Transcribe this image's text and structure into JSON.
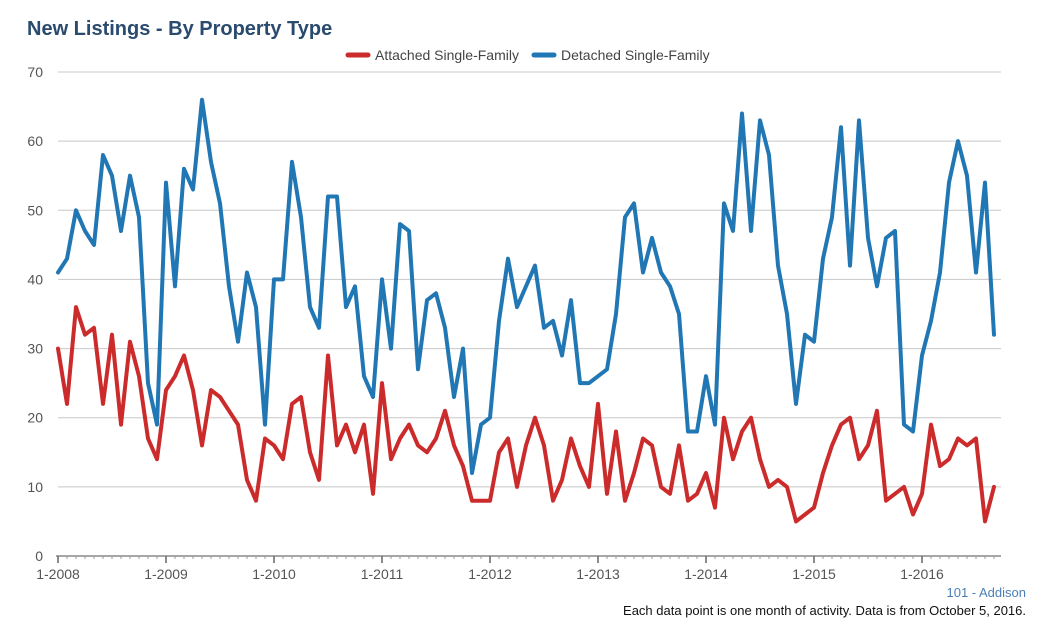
{
  "chart_data": {
    "type": "line",
    "title": "New Listings - By Property Type",
    "ylim": [
      0,
      70
    ],
    "yticks": [
      0,
      10,
      20,
      30,
      40,
      50,
      60,
      70
    ],
    "xlabel": "",
    "ylabel": "",
    "x_start": "1-2008",
    "x_tick_labels": [
      "1-2008",
      "1-2009",
      "1-2010",
      "1-2011",
      "1-2012",
      "1-2013",
      "1-2014",
      "1-2015",
      "1-2016"
    ],
    "grid": true,
    "legend_position": "top-center",
    "series": [
      {
        "name": "Attached Single-Family",
        "color": "#cc2b2b",
        "values": [
          30,
          22,
          36,
          32,
          33,
          22,
          32,
          19,
          31,
          26,
          17,
          14,
          24,
          26,
          29,
          24,
          16,
          24,
          23,
          21,
          19,
          11,
          8,
          17,
          16,
          14,
          22,
          23,
          15,
          11,
          29,
          16,
          19,
          15,
          19,
          9,
          25,
          14,
          17,
          19,
          16,
          15,
          17,
          21,
          16,
          13,
          8,
          8,
          8,
          15,
          17,
          10,
          16,
          20,
          16,
          8,
          11,
          17,
          13,
          10,
          22,
          9,
          18,
          8,
          12,
          17,
          16,
          10,
          9,
          16,
          8,
          9,
          12,
          7,
          20,
          14,
          18,
          20,
          14,
          10,
          11,
          10,
          5,
          6,
          7,
          12,
          16,
          19,
          20,
          14,
          16,
          21,
          8,
          9,
          10,
          6,
          9,
          19,
          13,
          14,
          17,
          16,
          17,
          5,
          10
        ]
      },
      {
        "name": "Detached Single-Family",
        "color": "#2177b4",
        "values": [
          41,
          43,
          50,
          47,
          45,
          58,
          55,
          47,
          55,
          49,
          25,
          19,
          54,
          39,
          56,
          53,
          66,
          57,
          51,
          39,
          31,
          41,
          36,
          19,
          40,
          40,
          57,
          49,
          36,
          33,
          52,
          52,
          36,
          39,
          26,
          23,
          40,
          30,
          48,
          47,
          27,
          37,
          38,
          33,
          23,
          30,
          12,
          19,
          20,
          34,
          43,
          36,
          39,
          42,
          33,
          34,
          29,
          37,
          25,
          25,
          26,
          27,
          35,
          49,
          51,
          41,
          46,
          41,
          39,
          35,
          18,
          18,
          26,
          19,
          51,
          47,
          64,
          47,
          63,
          58,
          42,
          35,
          22,
          32,
          31,
          43,
          49,
          62,
          42,
          63,
          46,
          39,
          46,
          47,
          19,
          18,
          29,
          34,
          41,
          54,
          60,
          55,
          41,
          54,
          32
        ]
      }
    ]
  },
  "footer": {
    "place": "101 - Addison",
    "note": "Each data point is one month of activity. Data is from October 5, 2016."
  }
}
